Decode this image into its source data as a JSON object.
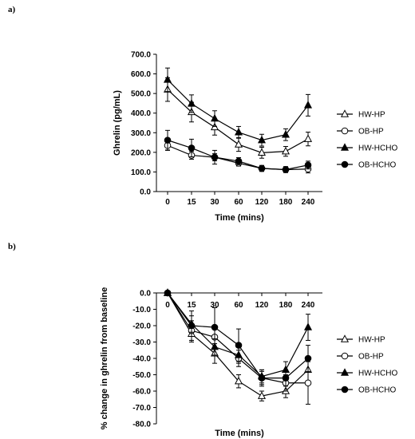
{
  "panel_labels": {
    "a": "a)",
    "b": "b)"
  },
  "chart_data": [
    {
      "type": "line",
      "x": [
        "0",
        "15",
        "30",
        "60",
        "120",
        "180",
        "240"
      ],
      "ylabel": "Ghrelin (pg/mL)",
      "xlabel": "Time (mins)",
      "ylim": [
        0,
        700
      ],
      "yticks": [
        "0.0",
        "100.0",
        "200.0",
        "300.0",
        "400.0",
        "500.0",
        "600.0",
        "700.0"
      ],
      "grid": false,
      "legend": "right",
      "series": [
        {
          "name": "HW-HP",
          "marker": "triangle-open",
          "values": [
            520,
            405,
            328,
            240,
            198,
            205,
            268
          ],
          "err": [
            60,
            50,
            40,
            35,
            28,
            25,
            35
          ]
        },
        {
          "name": "OB-HP",
          "marker": "circle-open",
          "values": [
            235,
            185,
            175,
            145,
            118,
            112,
            115
          ],
          "err": [
            25,
            20,
            18,
            15,
            15,
            15,
            20
          ]
        },
        {
          "name": "HW-HCHO",
          "marker": "triangle-filled",
          "values": [
            570,
            448,
            372,
            302,
            262,
            290,
            440
          ],
          "err": [
            60,
            45,
            40,
            30,
            30,
            30,
            55
          ]
        },
        {
          "name": "OB-HCHO",
          "marker": "circle-filled",
          "values": [
            262,
            222,
            175,
            155,
            118,
            112,
            135
          ],
          "err": [
            50,
            45,
            35,
            18,
            15,
            15,
            20
          ]
        }
      ]
    },
    {
      "type": "line",
      "x": [
        "0",
        "15",
        "30",
        "60",
        "120",
        "180",
        "240"
      ],
      "ylabel": "% change in ghrelin from baseline",
      "xlabel": "Time (mins)",
      "ylim": [
        -80,
        0
      ],
      "yticks": [
        "0.0",
        "-10.0",
        "-20.0",
        "-30.0",
        "-40.0",
        "-50.0",
        "-60.0",
        "-70.0",
        "-80.0"
      ],
      "grid": false,
      "legend": "right",
      "series": [
        {
          "name": "HW-HP",
          "marker": "triangle-open",
          "values": [
            0,
            -25,
            -37,
            -54,
            -63,
            -60,
            -47
          ],
          "err": [
            0,
            5,
            6,
            4,
            3,
            4,
            8
          ]
        },
        {
          "name": "OB-HP",
          "marker": "circle-open",
          "values": [
            0,
            -23,
            -27,
            -40,
            -52,
            -55,
            -55
          ],
          "err": [
            0,
            6,
            6,
            5,
            4,
            5,
            13
          ]
        },
        {
          "name": "HW-HCHO",
          "marker": "triangle-filled",
          "values": [
            0,
            -19,
            -33,
            -38,
            -51,
            -47,
            -21
          ],
          "err": [
            0,
            5,
            5,
            5,
            4,
            5,
            8
          ]
        },
        {
          "name": "OB-HCHO",
          "marker": "circle-filled",
          "values": [
            0,
            -20,
            -21,
            -32,
            -52,
            -52,
            -40
          ],
          "err": [
            0,
            9,
            12,
            10,
            5,
            5,
            8
          ]
        }
      ]
    }
  ]
}
